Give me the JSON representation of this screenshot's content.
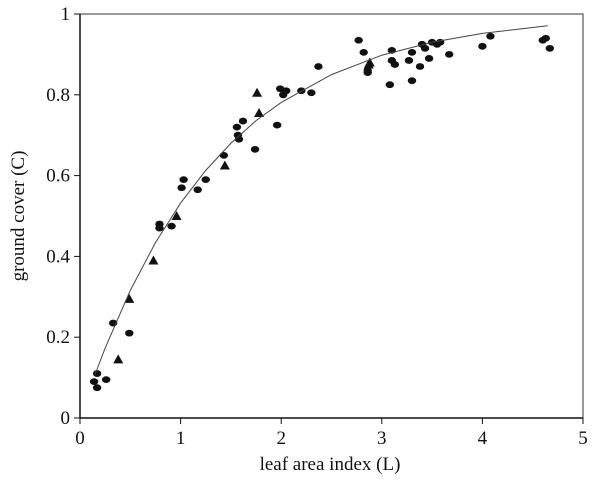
{
  "chart_data": {
    "type": "scatter",
    "xlabel": "leaf area index (L)",
    "ylabel": "ground cover (C)",
    "xlim": [
      0,
      5
    ],
    "ylim": [
      0,
      1
    ],
    "xticks": [
      0,
      1,
      2,
      3,
      4,
      5
    ],
    "yticks": [
      0,
      0.2,
      0.4,
      0.6,
      0.8,
      1
    ],
    "series": [
      {
        "marker": "circle",
        "color": "#111",
        "x": [
          0.14,
          0.17,
          0.17,
          0.26,
          0.33,
          0.49,
          0.79,
          0.79,
          0.91,
          1.01,
          1.03,
          1.17,
          1.25,
          1.43,
          1.56,
          1.57,
          1.58,
          1.62,
          1.74,
          1.96,
          1.99,
          2.02,
          2.05,
          2.2,
          2.3,
          2.37,
          2.77,
          2.82,
          2.86,
          2.86,
          3.08,
          3.1,
          3.1,
          3.13,
          3.27,
          3.3,
          3.3,
          3.38,
          3.4,
          3.43,
          3.47,
          3.5,
          3.55,
          3.58,
          3.67,
          4.0,
          4.08,
          4.6,
          4.63,
          4.67
        ],
        "values": [
          0.09,
          0.075,
          0.11,
          0.095,
          0.235,
          0.21,
          0.48,
          0.47,
          0.475,
          0.57,
          0.59,
          0.565,
          0.59,
          0.65,
          0.72,
          0.7,
          0.69,
          0.735,
          0.665,
          0.725,
          0.815,
          0.8,
          0.81,
          0.81,
          0.805,
          0.87,
          0.935,
          0.905,
          0.86,
          0.855,
          0.825,
          0.91,
          0.885,
          0.875,
          0.885,
          0.835,
          0.905,
          0.87,
          0.925,
          0.915,
          0.89,
          0.93,
          0.925,
          0.93,
          0.9,
          0.92,
          0.945,
          0.935,
          0.94,
          0.915
        ]
      },
      {
        "marker": "triangle",
        "color": "#111",
        "x": [
          0.38,
          0.49,
          0.73,
          0.96,
          1.44,
          1.76,
          1.78,
          2.87,
          2.88
        ],
        "values": [
          0.145,
          0.295,
          0.39,
          0.5,
          0.625,
          0.805,
          0.755,
          0.875,
          0.88
        ]
      },
      {
        "marker": "line",
        "color": "#444",
        "x": [
          0.15,
          0.25,
          0.5,
          0.75,
          1,
          1.25,
          1.5,
          1.75,
          2,
          2.5,
          3,
          3.5,
          4,
          4.65
        ],
        "values": [
          0.108,
          0.173,
          0.316,
          0.434,
          0.532,
          0.613,
          0.68,
          0.736,
          0.781,
          0.85,
          0.898,
          0.93,
          0.952,
          0.971
        ]
      }
    ]
  }
}
